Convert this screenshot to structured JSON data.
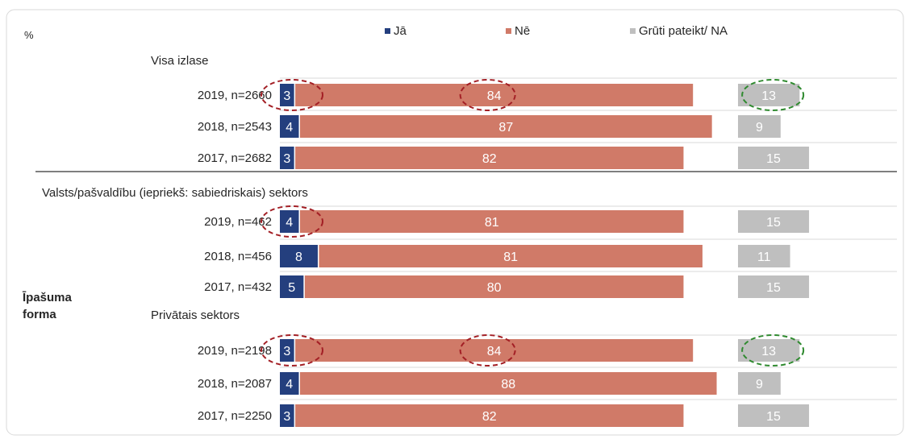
{
  "chart_data": {
    "type": "bar",
    "stacked": true,
    "orientation": "horizontal",
    "unit_label": "%",
    "legend": {
      "placement": "top",
      "entries": [
        {
          "name": "Jā",
          "color": "#243f7e"
        },
        {
          "name": "Nē",
          "color": "#d07a68"
        },
        {
          "name": "Grūti pateikt/ NA",
          "color": "#bfbfbf"
        }
      ]
    },
    "dimension_label": "Īpašuma forma",
    "groups": [
      {
        "title": "Visa izlase",
        "rows": [
          {
            "label": "2019, n=2660",
            "values": [
              3,
              84,
              13
            ],
            "highlight": {
              "Jā": true,
              "Nē": true,
              "Grūti pateikt/ NA": true
            }
          },
          {
            "label": "2018, n=2543",
            "values": [
              4,
              87,
              9
            ]
          },
          {
            "label": "2017, n=2682",
            "values": [
              3,
              82,
              15
            ]
          }
        ]
      },
      {
        "title": "Valsts/pašvaldību (iepriekš: sabiedriskais) sektors",
        "rows": [
          {
            "label": "2019, n=462",
            "values": [
              4,
              81,
              15
            ],
            "highlight": {
              "Jā": true
            }
          },
          {
            "label": "2018, n=456",
            "values": [
              8,
              81,
              11
            ]
          },
          {
            "label": "2017, n=432",
            "values": [
              5,
              80,
              15
            ]
          }
        ]
      },
      {
        "title": "Privātais sektors",
        "rows": [
          {
            "label": "2019, n=2198",
            "values": [
              3,
              84,
              13
            ],
            "highlight": {
              "Jā": true,
              "Nē": true,
              "Grūti pateikt/ NA": true
            }
          },
          {
            "label": "2018, n=2087",
            "values": [
              4,
              88,
              9
            ]
          },
          {
            "label": "2017, n=2250",
            "values": [
              3,
              82,
              15
            ]
          }
        ]
      }
    ],
    "colors": {
      "value_label": "#ffffff",
      "highlight_red": "#a31f25",
      "highlight_green": "#2f8a2f",
      "gridline": "#d9d9d9",
      "separator": "#7f7f7f"
    }
  }
}
